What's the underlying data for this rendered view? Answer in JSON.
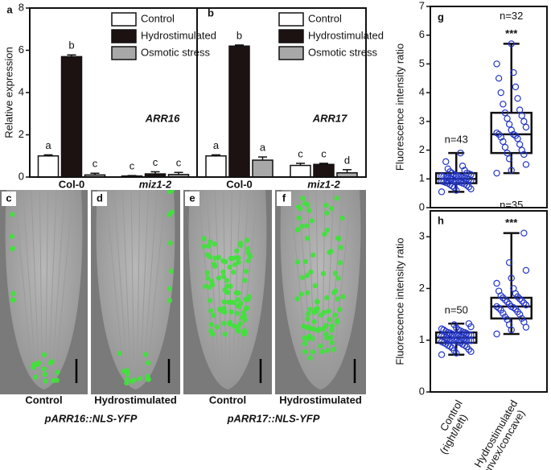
{
  "chart_data": [
    {
      "type": "bar",
      "panel": "a",
      "ylabel": "Relative expression",
      "gene": "ARR16",
      "categories": [
        "Col-0",
        "miz1-2"
      ],
      "ylim": [
        0,
        8
      ],
      "yticks": [
        0,
        2,
        4,
        6,
        8
      ],
      "series": [
        {
          "name": "Control",
          "color": "#ffffff",
          "values": [
            1.0,
            0.05
          ],
          "errors": [
            0.05,
            0.02
          ],
          "letters": [
            "a",
            "c"
          ]
        },
        {
          "name": "Hydrostimulated",
          "color": "#1c1212",
          "values": [
            5.7,
            0.15
          ],
          "errors": [
            0.08,
            0.1
          ],
          "letters": [
            "b",
            "c"
          ]
        },
        {
          "name": "Osmotic stress",
          "color": "#a8a8a8",
          "values": [
            0.1,
            0.12
          ],
          "errors": [
            0.08,
            0.1
          ],
          "letters": [
            "c",
            "c"
          ]
        }
      ]
    },
    {
      "type": "bar",
      "panel": "b",
      "gene": "ARR17",
      "categories": [
        "Col-0",
        "miz1-2"
      ],
      "ylim": [
        0,
        8
      ],
      "series": [
        {
          "name": "Control",
          "color": "#ffffff",
          "values": [
            1.0,
            0.55
          ],
          "errors": [
            0.05,
            0.1
          ],
          "letters": [
            "a",
            "c"
          ]
        },
        {
          "name": "Hydrostimulated",
          "color": "#1c1212",
          "values": [
            6.2,
            0.6
          ],
          "errors": [
            0.05,
            0.05
          ],
          "letters": [
            "b",
            "c"
          ]
        },
        {
          "name": "Osmotic stress",
          "color": "#a8a8a8",
          "values": [
            0.8,
            0.2
          ],
          "errors": [
            0.15,
            0.15
          ],
          "letters": [
            "a",
            "d"
          ]
        }
      ]
    },
    {
      "type": "box",
      "panel": "g",
      "ylabel": "Fluorescence intensity ratio",
      "ylim": [
        0,
        7
      ],
      "yticks": [
        0,
        1,
        2,
        3,
        4,
        5,
        6,
        7
      ],
      "point_color": "#2436c8",
      "boxes": [
        {
          "min": 0.55,
          "q1": 0.85,
          "median": 1.0,
          "q3": 1.2,
          "max": 1.9,
          "n_label": "n=43",
          "points": [
            0.55,
            0.6,
            0.65,
            0.7,
            0.72,
            0.75,
            0.78,
            0.8,
            0.82,
            0.85,
            0.85,
            0.87,
            0.88,
            0.9,
            0.9,
            0.92,
            0.93,
            0.95,
            0.96,
            0.98,
            1.0,
            1.0,
            1.0,
            1.02,
            1.03,
            1.05,
            1.05,
            1.07,
            1.08,
            1.1,
            1.1,
            1.12,
            1.15,
            1.15,
            1.18,
            1.2,
            1.2,
            1.25,
            1.3,
            1.35,
            1.45,
            1.6,
            1.9
          ]
        },
        {
          "min": 1.2,
          "q1": 1.9,
          "median": 2.55,
          "q3": 3.3,
          "max": 5.7,
          "n_label": "n=32",
          "significance": "***",
          "points": [
            1.2,
            1.3,
            1.5,
            1.7,
            1.85,
            1.9,
            2.0,
            2.1,
            2.2,
            2.3,
            2.4,
            2.45,
            2.5,
            2.55,
            2.55,
            2.6,
            2.7,
            2.8,
            2.9,
            3.0,
            3.1,
            3.2,
            3.3,
            3.4,
            3.6,
            3.8,
            4.0,
            4.2,
            4.5,
            4.7,
            5.0,
            5.7
          ]
        }
      ]
    },
    {
      "type": "box",
      "panel": "h",
      "ylabel": "Fluorescence intensity ratio",
      "ylim": [
        0,
        3.5
      ],
      "yticks": [
        0,
        1,
        2,
        3
      ],
      "point_color": "#2436c8",
      "categories": [
        [
          "Control",
          "(right/left)"
        ],
        [
          "Hydrostimulated",
          "(convex/concave)"
        ]
      ],
      "boxes": [
        {
          "min": 0.72,
          "q1": 0.95,
          "median": 1.05,
          "q3": 1.15,
          "max": 1.32,
          "n_label": "n=50",
          "points": [
            0.72,
            0.75,
            0.78,
            0.8,
            0.82,
            0.85,
            0.87,
            0.88,
            0.9,
            0.9,
            0.92,
            0.93,
            0.95,
            0.95,
            0.96,
            0.97,
            0.98,
            0.99,
            1.0,
            1.0,
            1.0,
            1.01,
            1.02,
            1.03,
            1.04,
            1.05,
            1.05,
            1.06,
            1.07,
            1.08,
            1.08,
            1.09,
            1.1,
            1.1,
            1.11,
            1.12,
            1.13,
            1.14,
            1.15,
            1.15,
            1.16,
            1.17,
            1.18,
            1.2,
            1.2,
            1.22,
            1.24,
            1.26,
            1.3,
            1.32
          ]
        },
        {
          "min": 1.12,
          "q1": 1.42,
          "median": 1.65,
          "q3": 1.82,
          "max": 3.07,
          "n_label": "n=35",
          "significance": "***",
          "points": [
            1.12,
            1.2,
            1.25,
            1.3,
            1.35,
            1.4,
            1.42,
            1.45,
            1.5,
            1.52,
            1.55,
            1.58,
            1.6,
            1.62,
            1.63,
            1.65,
            1.65,
            1.68,
            1.7,
            1.72,
            1.74,
            1.76,
            1.78,
            1.8,
            1.82,
            1.84,
            1.86,
            1.9,
            1.95,
            2.0,
            2.1,
            2.2,
            2.35,
            2.5,
            3.07
          ]
        }
      ]
    }
  ],
  "images": {
    "panels": [
      {
        "letter": "c",
        "caption": "Control"
      },
      {
        "letter": "d",
        "caption": "Hydrostimulated"
      },
      {
        "letter": "e",
        "caption": "Control"
      },
      {
        "letter": "f",
        "caption": "Hydrostimulated"
      }
    ],
    "constructs": [
      "pARR16::NLS-YFP",
      "pARR17::NLS-YFP"
    ]
  }
}
